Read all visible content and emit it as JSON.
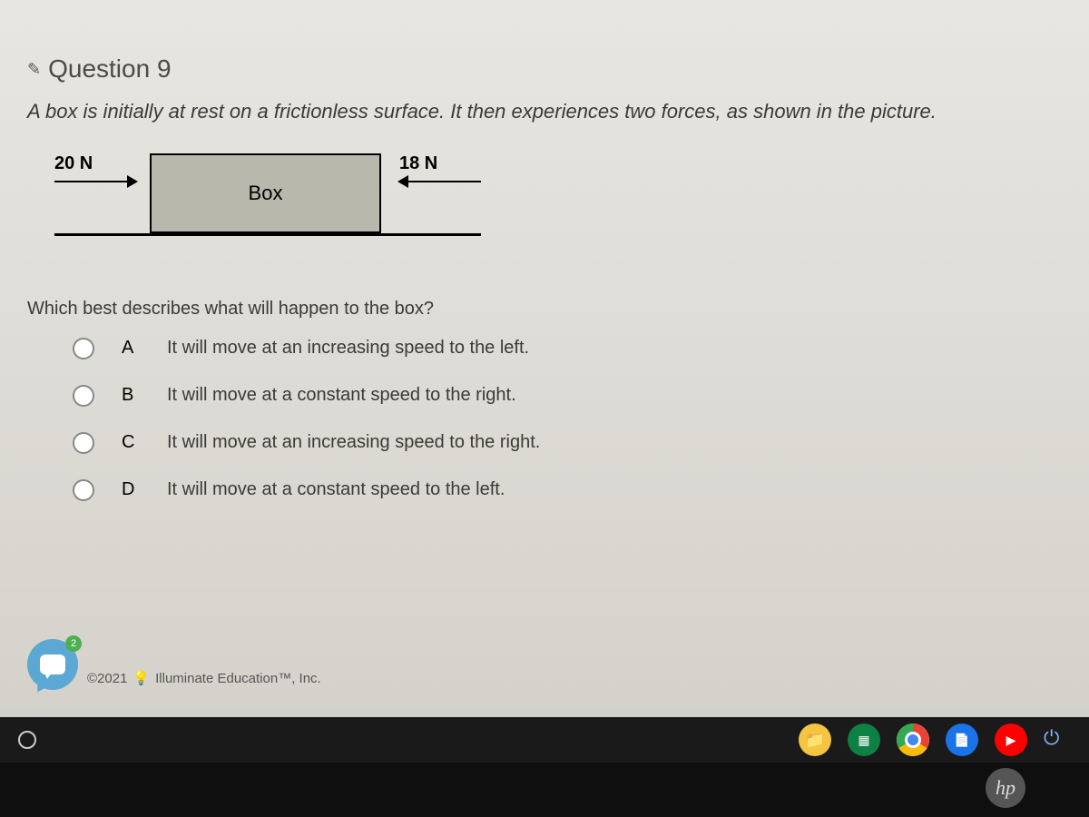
{
  "question": {
    "number_label": "Question 9",
    "prompt": "A box is initially at rest on a frictionless surface. It then experiences two forces, as shown in the picture.",
    "sub_prompt": "Which best describes what will happen to the box?"
  },
  "diagram": {
    "left_force": "20 N",
    "right_force": "18 N",
    "box_label": "Box"
  },
  "options": [
    {
      "letter": "A",
      "text": "It will move at an increasing speed to the left."
    },
    {
      "letter": "B",
      "text": "It will move at a constant speed to the right."
    },
    {
      "letter": "C",
      "text": "It will move at an increasing speed to the right."
    },
    {
      "letter": "D",
      "text": "It will move at a constant speed to the left."
    }
  ],
  "chat": {
    "badge": "2"
  },
  "footer": {
    "copyright_year": "©2021",
    "company": "Illuminate Education™, Inc."
  },
  "laptop": {
    "brand": "hp"
  },
  "colors": {
    "page_bg_top": "#e8e6e2",
    "page_bg_bottom": "#d4d2ca",
    "box_fill": "#b8b8ac",
    "chat_bubble": "#5ba8d4",
    "badge": "#4caf50",
    "taskbar": "#1a1a1a"
  }
}
